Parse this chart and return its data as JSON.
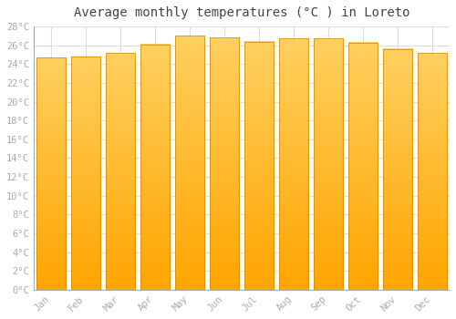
{
  "title": "Average monthly temperatures (°C ) in Loreto",
  "months": [
    "Jan",
    "Feb",
    "Mar",
    "Apr",
    "May",
    "Jun",
    "Jul",
    "Aug",
    "Sep",
    "Oct",
    "Nov",
    "Dec"
  ],
  "temperatures": [
    24.7,
    24.8,
    25.2,
    26.1,
    27.0,
    26.8,
    26.4,
    26.7,
    26.7,
    26.3,
    25.6,
    25.2
  ],
  "bar_color": "#FFA500",
  "bar_color_light": "#FFD050",
  "bar_edge_color": "#CC8800",
  "ylim": [
    0,
    28
  ],
  "yticks": [
    0,
    2,
    4,
    6,
    8,
    10,
    12,
    14,
    16,
    18,
    20,
    22,
    24,
    26,
    28
  ],
  "ytick_labels": [
    "0°C",
    "2°C",
    "4°C",
    "6°C",
    "8°C",
    "10°C",
    "12°C",
    "14°C",
    "16°C",
    "18°C",
    "20°C",
    "22°C",
    "24°C",
    "26°C",
    "28°C"
  ],
  "bg_color": "#ffffff",
  "grid_color": "#dddddd",
  "title_fontsize": 10,
  "tick_fontsize": 7.5,
  "bar_width": 0.85
}
